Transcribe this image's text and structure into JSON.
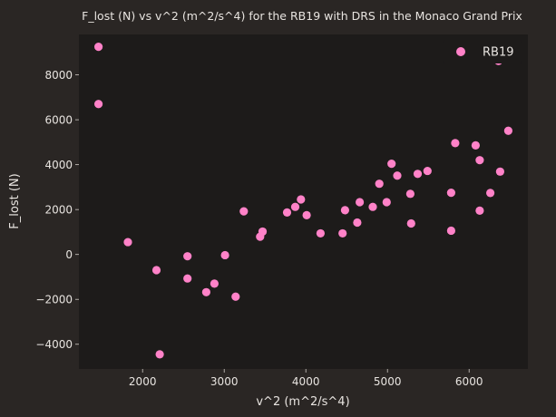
{
  "chart_data": {
    "type": "scatter",
    "title": "F_lost (N) vs v^2 (m^2/s^4) for the RB19 with DRS in the Monaco Grand Prix",
    "xlabel": "v^2 (m^2/s^4)",
    "ylabel": "F_lost (N)",
    "xlim": [
      1220,
      6720
    ],
    "ylim": [
      -5100,
      9800
    ],
    "xticks": [
      2000,
      3000,
      4000,
      5000,
      6000
    ],
    "xtick_labels": [
      "2000",
      "3000",
      "4000",
      "5000",
      "6000"
    ],
    "yticks": [
      -4000,
      -2000,
      0,
      2000,
      4000,
      6000,
      8000
    ],
    "ytick_labels": [
      "−4000",
      "−2000",
      "0",
      "2000",
      "4000",
      "6000",
      "8000"
    ],
    "grid": false,
    "legend_position": "top-right",
    "series": [
      {
        "name": "RB19",
        "color": "#ff82c8",
        "points": [
          [
            1460,
            9250
          ],
          [
            1460,
            6700
          ],
          [
            1820,
            550
          ],
          [
            2170,
            -700
          ],
          [
            2210,
            -4450
          ],
          [
            2550,
            -80
          ],
          [
            2550,
            -1070
          ],
          [
            2780,
            -1680
          ],
          [
            2880,
            -1300
          ],
          [
            3010,
            -30
          ],
          [
            3140,
            -1880
          ],
          [
            3240,
            1920
          ],
          [
            3440,
            790
          ],
          [
            3470,
            1020
          ],
          [
            3770,
            1870
          ],
          [
            3870,
            2120
          ],
          [
            3940,
            2450
          ],
          [
            4010,
            1750
          ],
          [
            4180,
            940
          ],
          [
            4450,
            940
          ],
          [
            4480,
            1970
          ],
          [
            4630,
            1420
          ],
          [
            4660,
            2330
          ],
          [
            4820,
            2120
          ],
          [
            4900,
            3150
          ],
          [
            4990,
            2330
          ],
          [
            5050,
            4040
          ],
          [
            5120,
            3510
          ],
          [
            5280,
            2700
          ],
          [
            5290,
            1380
          ],
          [
            5370,
            3590
          ],
          [
            5490,
            3720
          ],
          [
            5780,
            2750
          ],
          [
            5780,
            1060
          ],
          [
            5830,
            4960
          ],
          [
            6080,
            4860
          ],
          [
            6130,
            4200
          ],
          [
            6130,
            1950
          ],
          [
            6260,
            2740
          ],
          [
            6360,
            8620
          ],
          [
            6380,
            3690
          ],
          [
            6480,
            5510
          ]
        ]
      }
    ]
  }
}
